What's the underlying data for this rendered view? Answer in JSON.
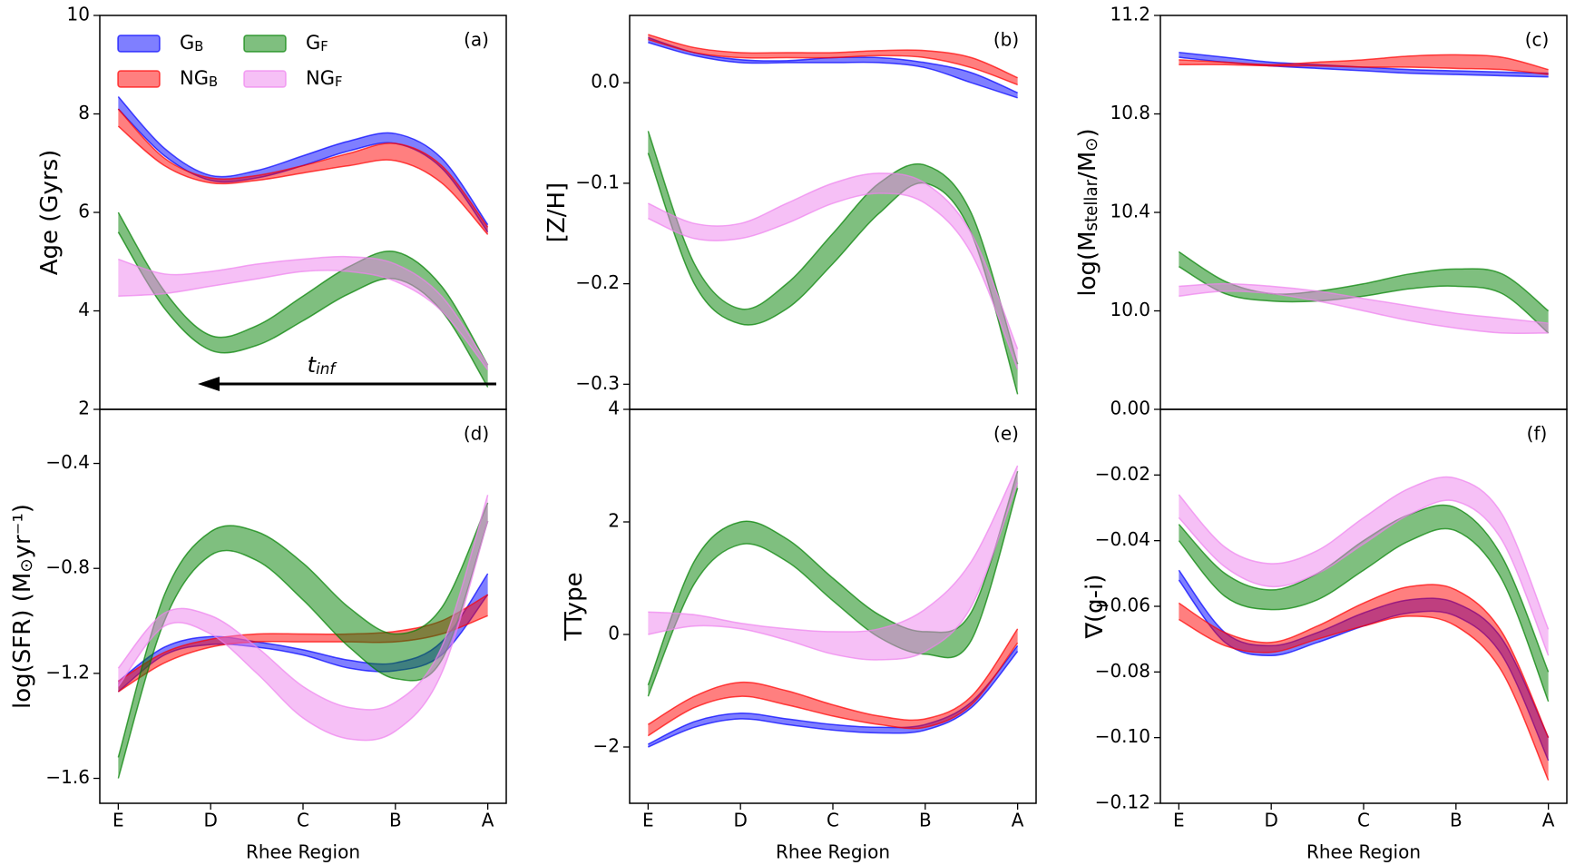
{
  "chart_data": [
    {
      "type": "band",
      "label": "(a)",
      "ylabel": [
        "Age (Gyrs)"
      ],
      "legend": "upper left",
      "annotation": [
        "t",
        "inf"
      ],
      "x": [
        0,
        0.5,
        1,
        1.5,
        2,
        2.5,
        3,
        3.5,
        4
      ],
      "xlim": [
        -0.2,
        4.2
      ],
      "ylim": [
        2,
        10
      ],
      "yticks": [
        2,
        4,
        6,
        8,
        10
      ],
      "series": [
        {
          "name": [
            "G",
            "B"
          ],
          "color": "#0000ff",
          "upper": [
            8.35,
            7.3,
            6.75,
            6.85,
            7.15,
            7.45,
            7.6,
            7.1,
            5.75
          ],
          "lower": [
            8.1,
            7.15,
            6.65,
            6.7,
            6.95,
            7.25,
            7.4,
            6.9,
            5.6
          ]
        },
        {
          "name": [
            "NG",
            "B"
          ],
          "color": "#ff0000",
          "upper": [
            8.1,
            7.1,
            6.7,
            6.75,
            6.95,
            7.2,
            7.4,
            6.95,
            5.7
          ],
          "lower": [
            7.75,
            6.95,
            6.6,
            6.65,
            6.8,
            6.95,
            7.05,
            6.6,
            5.55
          ]
        },
        {
          "name": [
            "G",
            "F"
          ],
          "color": "#008000",
          "upper": [
            6.0,
            4.4,
            3.5,
            3.7,
            4.3,
            4.9,
            5.2,
            4.5,
            2.9
          ],
          "lower": [
            5.6,
            4.05,
            3.2,
            3.3,
            3.8,
            4.35,
            4.65,
            4.0,
            2.45
          ]
        },
        {
          "name": [
            "NG",
            "F"
          ],
          "color": "#ee82ee",
          "upper": [
            5.05,
            4.75,
            4.8,
            4.95,
            5.05,
            5.1,
            4.95,
            4.3,
            2.9
          ],
          "lower": [
            4.3,
            4.35,
            4.5,
            4.65,
            4.8,
            4.8,
            4.6,
            4.0,
            2.8
          ]
        }
      ]
    },
    {
      "type": "band",
      "label": "(b)",
      "ylabel": [
        "[Z/H]"
      ],
      "x": [
        0,
        0.5,
        1,
        1.5,
        2,
        2.5,
        3,
        3.5,
        4
      ],
      "xlim": [
        -0.2,
        4.2
      ],
      "ylim": [
        -0.325,
        0.067
      ],
      "yticks": [
        {
          "value": 0,
          "label": "0.0"
        },
        {
          "value": -0.1,
          "label": "−0.1"
        },
        {
          "value": -0.2,
          "label": "−0.2"
        },
        {
          "value": -0.3,
          "label": "−0.3"
        }
      ],
      "series": [
        {
          "color": "#0000ff",
          "upper": [
            0.045,
            0.03,
            0.023,
            0.022,
            0.025,
            0.025,
            0.02,
            0.01,
            -0.01
          ],
          "lower": [
            0.04,
            0.027,
            0.02,
            0.02,
            0.02,
            0.02,
            0.015,
            0.0,
            -0.015
          ]
        },
        {
          "color": "#ff0000",
          "upper": [
            0.048,
            0.035,
            0.03,
            0.03,
            0.03,
            0.032,
            0.032,
            0.025,
            0.005
          ],
          "lower": [
            0.043,
            0.03,
            0.025,
            0.025,
            0.025,
            0.027,
            0.025,
            0.015,
            -0.002
          ]
        },
        {
          "color": "#008000",
          "upper": [
            -0.048,
            -0.18,
            -0.225,
            -0.2,
            -0.15,
            -0.1,
            -0.082,
            -0.13,
            -0.28
          ],
          "lower": [
            -0.07,
            -0.2,
            -0.24,
            -0.225,
            -0.18,
            -0.13,
            -0.1,
            -0.15,
            -0.31
          ]
        },
        {
          "color": "#ee82ee",
          "upper": [
            -0.12,
            -0.14,
            -0.14,
            -0.12,
            -0.1,
            -0.09,
            -0.1,
            -0.15,
            -0.265
          ],
          "lower": [
            -0.135,
            -0.155,
            -0.155,
            -0.14,
            -0.12,
            -0.11,
            -0.12,
            -0.17,
            -0.285
          ]
        }
      ]
    },
    {
      "type": "band",
      "label": "(c)",
      "ylabel": [
        "log(M",
        "stellar",
        "/M",
        "⊙",
        ")"
      ],
      "x": [
        0,
        0.5,
        1,
        1.5,
        2,
        2.5,
        3,
        3.5,
        4
      ],
      "xlim": [
        -0.2,
        4.2
      ],
      "ylim": [
        9.6,
        11.2
      ],
      "yticks": [
        {
          "value": 10,
          "label": "10.0"
        },
        10.4,
        10.8,
        11.2
      ],
      "series": [
        {
          "color": "#0000ff",
          "upper": [
            11.05,
            11.03,
            11.01,
            11.0,
            10.99,
            10.98,
            10.975,
            10.97,
            10.965
          ],
          "lower": [
            11.03,
            11.01,
            10.995,
            10.985,
            10.975,
            10.965,
            10.96,
            10.955,
            10.95
          ]
        },
        {
          "color": "#ff0000",
          "upper": [
            11.02,
            11.01,
            11.0,
            11.01,
            11.02,
            11.035,
            11.04,
            11.03,
            10.98
          ],
          "lower": [
            11.0,
            11.0,
            10.995,
            10.995,
            10.99,
            10.99,
            10.985,
            10.98,
            10.96
          ]
        },
        {
          "color": "#008000",
          "upper": [
            10.24,
            10.12,
            10.07,
            10.08,
            10.11,
            10.15,
            10.17,
            10.15,
            10.0
          ],
          "lower": [
            10.18,
            10.07,
            10.04,
            10.04,
            10.06,
            10.09,
            10.1,
            10.07,
            9.91
          ]
        },
        {
          "color": "#ee82ee",
          "upper": [
            10.1,
            10.11,
            10.1,
            10.08,
            10.05,
            10.02,
            9.99,
            9.97,
            9.95
          ],
          "lower": [
            10.06,
            10.08,
            10.07,
            10.04,
            10.0,
            9.96,
            9.93,
            9.91,
            9.91
          ]
        }
      ]
    },
    {
      "type": "band",
      "label": "(d)",
      "ylabel": [
        "log(SFR) (M",
        "⊙",
        "yr⁻¹)"
      ],
      "xlabel": "Rhee Region",
      "x": [
        0,
        0.5,
        1,
        1.5,
        2,
        2.5,
        3,
        3.5,
        4
      ],
      "xlim": [
        -0.2,
        4.2
      ],
      "ylim": [
        -1.695,
        -0.194
      ],
      "xticks": [
        {
          "value": 0,
          "label": "E"
        },
        {
          "value": 1,
          "label": "D"
        },
        {
          "value": 2,
          "label": "C"
        },
        {
          "value": 3,
          "label": "B"
        },
        {
          "value": 4,
          "label": "A"
        }
      ],
      "yticks": [
        {
          "value": -0.4,
          "label": "−0.4"
        },
        {
          "value": -0.8,
          "label": "−0.8"
        },
        {
          "value": -1.2,
          "label": "−1.2"
        },
        {
          "value": -1.6,
          "label": "−1.6"
        }
      ],
      "series": [
        {
          "color": "#0000ff",
          "upper": [
            -1.23,
            -1.1,
            -1.06,
            -1.08,
            -1.11,
            -1.15,
            -1.16,
            -1.08,
            -0.82
          ],
          "lower": [
            -1.27,
            -1.13,
            -1.09,
            -1.1,
            -1.13,
            -1.18,
            -1.19,
            -1.13,
            -0.9
          ]
        },
        {
          "color": "#ff0000",
          "upper": [
            -1.23,
            -1.12,
            -1.07,
            -1.05,
            -1.05,
            -1.05,
            -1.04,
            -1.0,
            -0.9
          ],
          "lower": [
            -1.27,
            -1.16,
            -1.1,
            -1.08,
            -1.08,
            -1.08,
            -1.08,
            -1.05,
            -0.98
          ]
        },
        {
          "color": "#008000",
          "upper": [
            -1.52,
            -0.9,
            -0.66,
            -0.66,
            -0.78,
            -0.95,
            -1.05,
            -0.95,
            -0.55
          ],
          "lower": [
            -1.6,
            -1.0,
            -0.75,
            -0.77,
            -0.92,
            -1.1,
            -1.22,
            -1.15,
            -0.62
          ]
        },
        {
          "color": "#ee82ee",
          "upper": [
            -1.18,
            -0.97,
            -0.98,
            -1.1,
            -1.25,
            -1.33,
            -1.31,
            -1.1,
            -0.52
          ],
          "lower": [
            -1.25,
            -1.02,
            -1.05,
            -1.2,
            -1.37,
            -1.45,
            -1.42,
            -1.2,
            -0.62
          ]
        }
      ]
    },
    {
      "type": "band",
      "label": "(e)",
      "ylabel": [
        "TType"
      ],
      "xlabel": "Rhee Region",
      "x": [
        0,
        0.5,
        1,
        1.5,
        2,
        2.5,
        3,
        3.5,
        4
      ],
      "xlim": [
        -0.2,
        4.2
      ],
      "ylim": [
        -3,
        4
      ],
      "xticks": [
        {
          "value": 0,
          "label": "E"
        },
        {
          "value": 1,
          "label": "D"
        },
        {
          "value": 2,
          "label": "C"
        },
        {
          "value": 3,
          "label": "B"
        },
        {
          "value": 4,
          "label": "A"
        }
      ],
      "yticks": [
        4,
        2,
        0,
        {
          "value": -2,
          "label": "−2"
        }
      ],
      "series": [
        {
          "color": "#0000ff",
          "upper": [
            -1.95,
            -1.55,
            -1.4,
            -1.5,
            -1.6,
            -1.65,
            -1.6,
            -1.2,
            -0.2
          ],
          "lower": [
            -2.0,
            -1.65,
            -1.5,
            -1.6,
            -1.7,
            -1.75,
            -1.7,
            -1.3,
            -0.3
          ]
        },
        {
          "color": "#ff0000",
          "upper": [
            -1.6,
            -1.1,
            -0.85,
            -1.0,
            -1.25,
            -1.45,
            -1.5,
            -1.1,
            0.1
          ],
          "lower": [
            -1.8,
            -1.3,
            -1.1,
            -1.25,
            -1.45,
            -1.6,
            -1.65,
            -1.25,
            -0.15
          ]
        },
        {
          "color": "#008000",
          "upper": [
            -0.9,
            1.3,
            2.0,
            1.7,
            1.0,
            0.35,
            0.05,
            0.4,
            2.9
          ],
          "lower": [
            -1.1,
            0.9,
            1.6,
            1.3,
            0.6,
            -0.05,
            -0.35,
            -0.1,
            2.6
          ]
        },
        {
          "color": "#ee82ee",
          "upper": [
            0.4,
            0.35,
            0.2,
            0.1,
            0.05,
            0.1,
            0.45,
            1.3,
            3.0
          ],
          "lower": [
            0.0,
            0.15,
            0.1,
            -0.1,
            -0.35,
            -0.45,
            -0.3,
            0.5,
            2.7
          ]
        }
      ]
    },
    {
      "type": "band",
      "label": "(f)",
      "ylabel": [
        "∇(g-i)"
      ],
      "xlabel": "Rhee Region",
      "x": [
        0,
        0.5,
        1,
        1.5,
        2,
        2.5,
        3,
        3.5,
        4
      ],
      "xlim": [
        -0.2,
        4.2
      ],
      "ylim": [
        -0.12,
        0.0
      ],
      "xticks": [
        {
          "value": 0,
          "label": "E"
        },
        {
          "value": 1,
          "label": "D"
        },
        {
          "value": 2,
          "label": "C"
        },
        {
          "value": 3,
          "label": "B"
        },
        {
          "value": 4,
          "label": "A"
        }
      ],
      "yticks": [
        {
          "value": 0,
          "label": "0.00"
        },
        {
          "value": -0.02,
          "label": "−0.02"
        },
        {
          "value": -0.04,
          "label": "−0.04"
        },
        {
          "value": -0.06,
          "label": "−0.06"
        },
        {
          "value": -0.08,
          "label": "−0.08"
        },
        {
          "value": -0.1,
          "label": "−0.10"
        },
        {
          "value": -0.12,
          "label": "−0.12"
        }
      ],
      "series": [
        {
          "color": "#0000ff",
          "upper": [
            -0.049,
            -0.068,
            -0.072,
            -0.068,
            -0.062,
            -0.058,
            -0.059,
            -0.07,
            -0.1
          ],
          "lower": [
            -0.052,
            -0.071,
            -0.075,
            -0.071,
            -0.066,
            -0.062,
            -0.063,
            -0.075,
            -0.107
          ]
        },
        {
          "color": "#ff0000",
          "upper": [
            -0.059,
            -0.068,
            -0.071,
            -0.066,
            -0.059,
            -0.054,
            -0.055,
            -0.068,
            -0.1
          ],
          "lower": [
            -0.064,
            -0.072,
            -0.074,
            -0.07,
            -0.066,
            -0.063,
            -0.066,
            -0.08,
            -0.113
          ]
        },
        {
          "color": "#008000",
          "upper": [
            -0.035,
            -0.05,
            -0.055,
            -0.05,
            -0.04,
            -0.032,
            -0.03,
            -0.045,
            -0.08
          ],
          "lower": [
            -0.04,
            -0.057,
            -0.061,
            -0.058,
            -0.049,
            -0.04,
            -0.037,
            -0.052,
            -0.089
          ]
        },
        {
          "color": "#ee82ee",
          "upper": [
            -0.026,
            -0.042,
            -0.047,
            -0.043,
            -0.033,
            -0.024,
            -0.021,
            -0.032,
            -0.067
          ],
          "lower": [
            -0.033,
            -0.048,
            -0.054,
            -0.05,
            -0.041,
            -0.032,
            -0.028,
            -0.04,
            -0.075
          ]
        }
      ]
    }
  ]
}
